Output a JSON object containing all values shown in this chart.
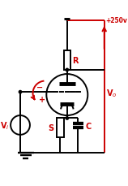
{
  "bg_color": "#ffffff",
  "line_color": "#000000",
  "red_color": "#cc0000",
  "lw": 1.4,
  "figsize": [
    1.58,
    2.3
  ],
  "dpi": 100,
  "xlim": [
    0,
    158
  ],
  "ylim": [
    0,
    230
  ]
}
